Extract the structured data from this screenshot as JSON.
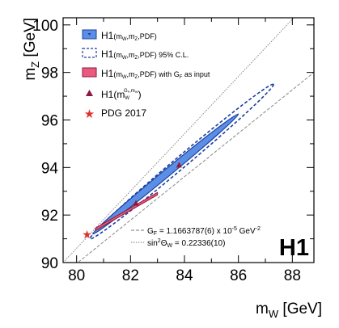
{
  "chart_data": {
    "type": "scatter",
    "title": "",
    "xlabel": "m",
    "xlabel_sub": "W",
    "xlabel_unit": " [GeV]",
    "ylabel": "m",
    "ylabel_sub": "Z",
    "ylabel_unit": " [GeV]",
    "xlim": [
      79.5,
      88.8
    ],
    "ylim": [
      90,
      100.3
    ],
    "xticks": [
      80,
      82,
      84,
      86,
      88
    ],
    "yticks": [
      90,
      92,
      94,
      96,
      98,
      100
    ],
    "grid": false,
    "legend_position": "top-left",
    "experiment_label": "H1",
    "series": [
      {
        "name": "H1(m_W,m_Z,PDF)",
        "kind": "contour-68",
        "color": "#5b8fe6",
        "edge": "#1b3fa0",
        "center": [
          83.8,
          94.2
        ],
        "major_end_a": [
          80.6,
          91.2
        ],
        "major_end_b": [
          86.0,
          96.25
        ],
        "half_width_y": 0.2
      },
      {
        "name": "H1(m_W,m_Z,PDF) 95% C.L.",
        "kind": "contour-95",
        "color": "#1b3fa0",
        "center": [
          83.9,
          94.3
        ],
        "major_end_a": [
          80.5,
          91.0
        ],
        "major_end_b": [
          87.3,
          97.5
        ],
        "half_width_y": 0.32
      },
      {
        "name": "H1(m_W,m_Z,PDF) with G_F as input",
        "kind": "band",
        "color": "#ea5a7e",
        "edge": "#8b1a3a",
        "points": [
          [
            80.7,
            91.4
          ],
          [
            83.0,
            92.9
          ]
        ]
      },
      {
        "name": "H1(m_W^{G_F,m_W})",
        "kind": "triangle",
        "color": "#8b1a3a",
        "points": [
          [
            82.2,
            92.5
          ],
          [
            83.8,
            94.1
          ]
        ]
      },
      {
        "name": "PDG 2017",
        "kind": "star",
        "color": "#e23030",
        "points": [
          [
            80.385,
            91.1876
          ]
        ]
      },
      {
        "name": "G_F line",
        "kind": "line",
        "style": "dashed",
        "color": "#888888",
        "x": [
          79.5,
          88.8
        ],
        "y": [
          89.5,
          98.0
        ]
      },
      {
        "name": "sin2 theta_W line",
        "kind": "line",
        "style": "dotted",
        "color": "#888888",
        "x": [
          79.5,
          88.8
        ],
        "y": [
          90.0,
          101.2
        ]
      }
    ]
  },
  "legend": {
    "item1": "H1",
    "item1_args": "(m",
    "item1_sub1": "W",
    "item1_mid": ",m",
    "item1_sub2": "Z",
    "item1_end": ",PDF)",
    "item2_end": ",PDF) 95% C.L.",
    "item3_end": ",PDF) with G",
    "item3_sub3": "F",
    "item3_tail": " as input",
    "item4": "H1(m",
    "item4_sub": "W",
    "item4_sup": "G",
    "item4_supsub": "F",
    "item4_sup2": ",m",
    "item4_supsub2": "W",
    "item4_end": ")",
    "item5": "PDG 2017"
  },
  "notes": {
    "gf_pre": "G",
    "gf_sub": "F",
    "gf_val": " = 1.1663787(6) x 10",
    "gf_exp": "-5",
    "gf_unit": " GeV",
    "gf_unit_exp": "-2",
    "sin_pre": "sin",
    "sin_sup": "2",
    "sin_theta": "Θ",
    "sin_sub": "W",
    "sin_val": " = 0.22336(10)"
  }
}
